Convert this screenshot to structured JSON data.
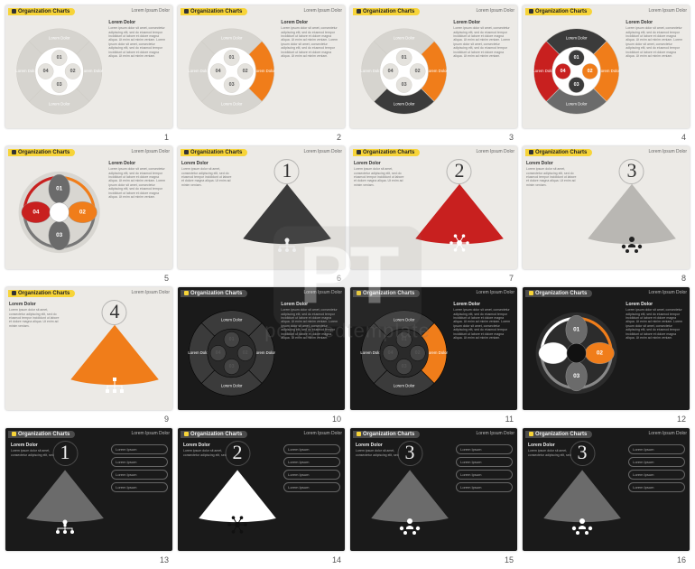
{
  "global": {
    "badge_text": "Organization Charts",
    "corner_title": "Lorem Ipsum Dolor",
    "heading": "Lorem Dolor",
    "lipsum": "Lorem ipsum dolor sit amet, consectetur adipiscing elit, sed do eiusmod tempor incididunt ut labore et dolore magna aliqua. Ut enim ad minim veniam.",
    "segments": {
      "n01": "01",
      "n02": "02",
      "n03": "03",
      "n04": "04",
      "label": "Lorem Dolor"
    },
    "watermark_big": "PT",
    "watermark_small": "poweredtemplate"
  },
  "colors": {
    "badge_bg": "#f7d438",
    "badge_bg_dark": "#4a4a4a",
    "badge_square": "#333333",
    "badge_square_dark": "#f7d438",
    "accent_orange": "#f07d1a",
    "accent_orange_grad": "#e8471b",
    "accent_red": "#c8201f",
    "grey_dark": "#3b3b3b",
    "grey_mid": "#6b6b6b",
    "grey_light": "#b9b7b3",
    "grey_vlight": "#d6d4cf",
    "ring_outline": "#cfccc6",
    "white": "#ffffff",
    "black": "#1a1a1a"
  },
  "slides": [
    {
      "n": 1,
      "theme": "light",
      "badge": "yellow",
      "layout": "ring4",
      "textside": "right",
      "highlights": []
    },
    {
      "n": 2,
      "theme": "light",
      "badge": "yellow",
      "layout": "ring4",
      "textside": "right",
      "highlights": [
        "02_orange"
      ]
    },
    {
      "n": 3,
      "theme": "light",
      "badge": "yellow",
      "layout": "ring4",
      "textside": "right",
      "highlights": [
        "02_orange",
        "03_dark"
      ]
    },
    {
      "n": 4,
      "theme": "light",
      "badge": "yellow",
      "layout": "ring4",
      "textside": "right",
      "highlights": [
        "01_dark",
        "02_orange",
        "03_grey",
        "04_red"
      ],
      "bold_center": true
    },
    {
      "n": 5,
      "theme": "light",
      "badge": "yellow",
      "layout": "cross4",
      "textside": "right",
      "colors": {
        "top": "grey",
        "right": "orange",
        "bottom": "grey",
        "left": "red"
      }
    },
    {
      "n": 6,
      "theme": "light",
      "badge": "yellow",
      "layout": "wedge",
      "big_num": "1",
      "wedge_color": "grey_dark",
      "icon": "hierarchy",
      "heading_side": "left"
    },
    {
      "n": 7,
      "theme": "light",
      "badge": "yellow",
      "layout": "wedge",
      "big_num": "2",
      "wedge_color": "accent_red",
      "icon": "network",
      "heading_side": "left"
    },
    {
      "n": 8,
      "theme": "light",
      "badge": "yellow",
      "layout": "wedge",
      "big_num": "3",
      "wedge_color": "grey_light",
      "icon": "team",
      "heading_side": "left"
    },
    {
      "n": 9,
      "theme": "light",
      "badge": "yellow",
      "layout": "wedge",
      "big_num": "4",
      "wedge_color": "accent_orange",
      "icon": "tree",
      "heading_side": "left"
    },
    {
      "n": 10,
      "theme": "dark",
      "badge": "dark",
      "layout": "ring4",
      "textside": "right",
      "highlights": []
    },
    {
      "n": 11,
      "theme": "dark",
      "badge": "dark",
      "layout": "ring4",
      "textside": "right",
      "highlights": [
        "02_orange",
        "03_dark"
      ]
    },
    {
      "n": 12,
      "theme": "dark",
      "badge": "dark",
      "layout": "cross4",
      "textside": "right",
      "colors": {
        "top": "grey",
        "right": "orange",
        "bottom": "grey",
        "left": "white"
      }
    },
    {
      "n": 13,
      "theme": "dark",
      "badge": "dark",
      "layout": "wedge-pills",
      "big_num": "1",
      "wedge_color": "grey_mid",
      "icon": "hierarchy"
    },
    {
      "n": 14,
      "theme": "dark",
      "badge": "dark",
      "layout": "wedge-pills",
      "big_num": "2",
      "wedge_color": "white",
      "icon": "network"
    },
    {
      "n": 15,
      "theme": "dark",
      "badge": "dark",
      "layout": "wedge-pills",
      "big_num": "3",
      "wedge_color": "grey_mid",
      "icon": "team"
    },
    {
      "n": 16,
      "theme": "dark",
      "badge": "dark",
      "layout": "wedge-pills",
      "big_num": "3",
      "wedge_color": "grey_mid",
      "icon": "team"
    }
  ],
  "pills": [
    "Lorem Ipsum",
    "Lorem Ipsum",
    "Lorem Ipsum",
    "Lorem Ipsum"
  ]
}
